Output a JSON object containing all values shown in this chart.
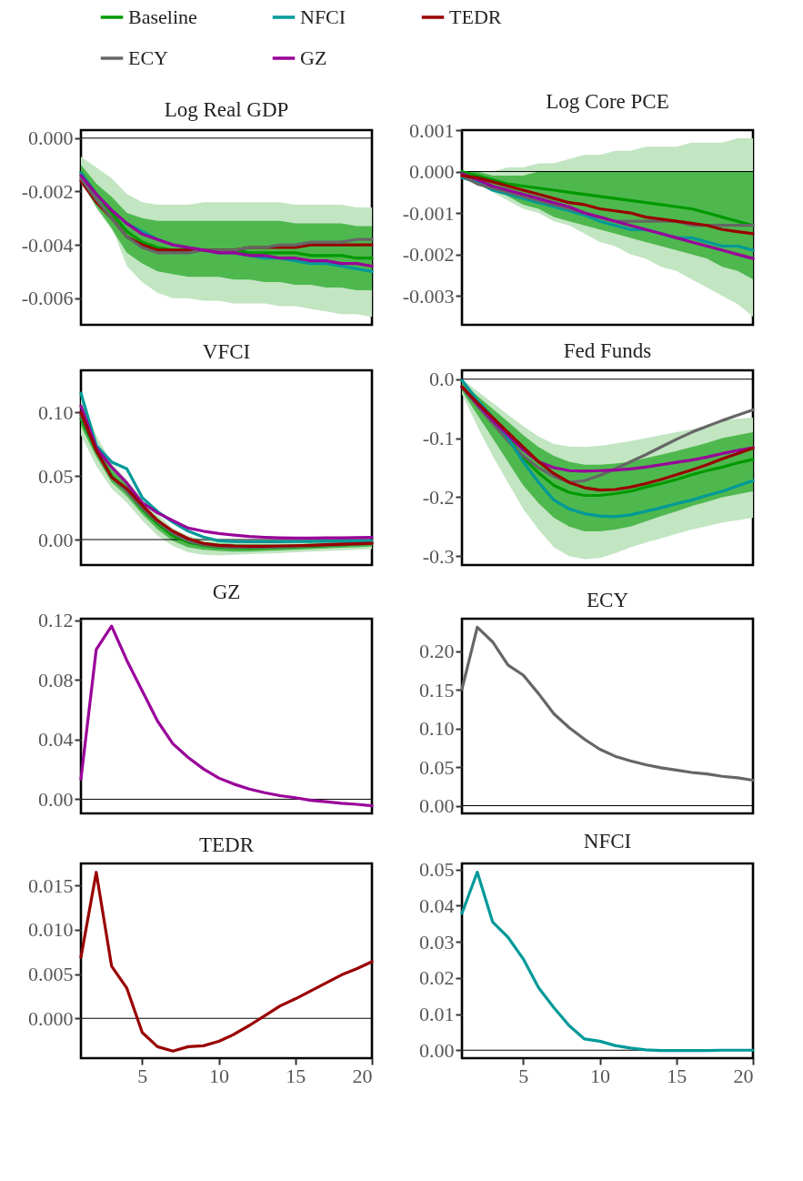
{
  "chart_data": [
    {
      "type": "line",
      "title": "Log Real GDP",
      "x": [
        1,
        2,
        3,
        4,
        5,
        6,
        7,
        8,
        9,
        10,
        11,
        12,
        13,
        14,
        15,
        16,
        17,
        18,
        19,
        20
      ],
      "xlim": [
        1,
        20
      ],
      "ylim": [
        -0.007,
        0.0003
      ],
      "yticks": [
        {
          "value": 0,
          "label": "0.000"
        },
        {
          "value": -0.002,
          "label": "-0.002"
        },
        {
          "value": -0.004,
          "label": "-0.004"
        },
        {
          "value": -0.006,
          "label": "-0.006"
        }
      ],
      "tick_labels": "y",
      "legend": "top",
      "grid": false,
      "ref_lines": [
        {
          "axis": "y",
          "value": 0,
          "color": "#000000"
        }
      ],
      "series": [
        {
          "color": "#c2e5c2",
          "values": [
            null,
            null,
            null,
            null,
            null,
            null,
            null,
            null,
            null,
            null,
            null,
            null,
            null,
            null,
            null,
            null,
            null,
            null,
            null,
            null
          ],
          "lower": [
            -0.0017,
            -0.0025,
            -0.0033,
            -0.0048,
            -0.0054,
            -0.0058,
            -0.006,
            -0.006,
            -0.0061,
            -0.0061,
            -0.0062,
            -0.0062,
            -0.0062,
            -0.0063,
            -0.0063,
            -0.0064,
            -0.0065,
            -0.0066,
            -0.0066,
            -0.0067
          ],
          "upper": [
            -0.0007,
            -0.0011,
            -0.0015,
            -0.0021,
            -0.0024,
            -0.0025,
            -0.0025,
            -0.0025,
            -0.0024,
            -0.0024,
            -0.0024,
            -0.0024,
            -0.0024,
            -0.0024,
            -0.0025,
            -0.0025,
            -0.0025,
            -0.0025,
            -0.0026,
            -0.0026
          ]
        },
        {
          "name": "Baseline",
          "color": "#009900",
          "values": [
            -0.0013,
            -0.0021,
            -0.0028,
            -0.0035,
            -0.0039,
            -0.0041,
            -0.0042,
            -0.0042,
            -0.0042,
            -0.0042,
            -0.0042,
            -0.0043,
            -0.0043,
            -0.0043,
            -0.0043,
            -0.0044,
            -0.0044,
            -0.0044,
            -0.0045,
            -0.0045
          ],
          "lower": [
            -0.0016,
            -0.0026,
            -0.0034,
            -0.0043,
            -0.0047,
            -0.005,
            -0.0051,
            -0.0052,
            -0.0052,
            -0.0052,
            -0.0053,
            -0.0053,
            -0.0054,
            -0.0054,
            -0.0055,
            -0.0055,
            -0.0056,
            -0.0056,
            -0.0057,
            -0.0057
          ],
          "upper": [
            -0.001,
            -0.0017,
            -0.0022,
            -0.0028,
            -0.003,
            -0.0031,
            -0.0031,
            -0.0031,
            -0.0031,
            -0.0031,
            -0.0031,
            -0.0031,
            -0.0031,
            -0.0031,
            -0.0032,
            -0.0032,
            -0.0032,
            -0.0032,
            -0.0033,
            -0.0033
          ]
        },
        {
          "name": "NFCI",
          "color": "#009999",
          "values": [
            -0.0013,
            -0.0021,
            -0.0027,
            -0.0032,
            -0.0035,
            -0.0038,
            -0.004,
            -0.0041,
            -0.0042,
            -0.0043,
            -0.0043,
            -0.0044,
            -0.0045,
            -0.0045,
            -0.0046,
            -0.0047,
            -0.0047,
            -0.0048,
            -0.0049,
            -0.005
          ]
        },
        {
          "name": "TEDR",
          "color": "#990000",
          "values": [
            -0.0016,
            -0.0024,
            -0.003,
            -0.0037,
            -0.004,
            -0.0042,
            -0.0042,
            -0.0042,
            -0.0042,
            -0.0042,
            -0.0042,
            -0.0041,
            -0.0041,
            -0.0041,
            -0.0041,
            -0.004,
            -0.004,
            -0.004,
            -0.004,
            -0.004
          ]
        },
        {
          "name": "ECY",
          "color": "#666666",
          "values": [
            -0.0015,
            -0.0023,
            -0.003,
            -0.0037,
            -0.0041,
            -0.0043,
            -0.0043,
            -0.0043,
            -0.0042,
            -0.0042,
            -0.0042,
            -0.0041,
            -0.0041,
            -0.004,
            -0.004,
            -0.0039,
            -0.0039,
            -0.0039,
            -0.0038,
            -0.0038
          ]
        },
        {
          "name": "GZ",
          "color": "#990099",
          "values": [
            -0.0014,
            -0.0021,
            -0.0027,
            -0.0032,
            -0.0036,
            -0.0038,
            -0.004,
            -0.0041,
            -0.0042,
            -0.0043,
            -0.0043,
            -0.0044,
            -0.0044,
            -0.0045,
            -0.0045,
            -0.0046,
            -0.0046,
            -0.0047,
            -0.0047,
            -0.0048
          ]
        }
      ]
    },
    {
      "type": "line",
      "title": "Log Core PCE",
      "x": [
        1,
        2,
        3,
        4,
        5,
        6,
        7,
        8,
        9,
        10,
        11,
        12,
        13,
        14,
        15,
        16,
        17,
        18,
        19,
        20
      ],
      "xlim": [
        1,
        20
      ],
      "ylim": [
        -0.0037,
        0.001
      ],
      "yticks": [
        {
          "value": 0.001,
          "label": "0.001"
        },
        {
          "value": 0,
          "label": "0.000"
        },
        {
          "value": -0.001,
          "label": "-0.001"
        },
        {
          "value": -0.002,
          "label": "-0.002"
        },
        {
          "value": -0.003,
          "label": "-0.003"
        }
      ],
      "tick_labels": "y",
      "grid": false,
      "ref_lines": [
        {
          "axis": "y",
          "value": 0,
          "color": "#000000"
        }
      ],
      "series": [
        {
          "color": "#c2e5c2",
          "values": [
            null,
            null,
            null,
            null,
            null,
            null,
            null,
            null,
            null,
            null,
            null,
            null,
            null,
            null,
            null,
            null,
            null,
            null,
            null,
            null
          ],
          "lower": [
            -0.0001,
            -0.0003,
            -0.0005,
            -0.0007,
            -0.0009,
            -0.001,
            -0.0012,
            -0.0013,
            -0.0015,
            -0.0017,
            -0.0018,
            -0.002,
            -0.0021,
            -0.0023,
            -0.0024,
            -0.0026,
            -0.0028,
            -0.003,
            -0.0032,
            -0.0035
          ],
          "upper": [
            0,
            0,
            0,
            0.0001,
            0.0001,
            0.0002,
            0.0002,
            0.0003,
            0.0004,
            0.0004,
            0.0005,
            0.0005,
            0.0006,
            0.0006,
            0.0006,
            0.0007,
            0.0007,
            0.0007,
            0.0008,
            0.0008
          ]
        },
        {
          "color": "#009900",
          "values": [
            0,
            -0.0001,
            -0.0002,
            -0.0003,
            -0.00035,
            -0.0004,
            -0.00045,
            -0.0005,
            -0.00055,
            -0.0006,
            -0.00065,
            -0.0007,
            -0.00075,
            -0.0008,
            -0.00085,
            -0.0009,
            -0.001,
            -0.0011,
            -0.0012,
            -0.0013
          ],
          "lower": [
            -0.0001,
            -0.0002,
            -0.0004,
            -0.0006,
            -0.0008,
            -0.0009,
            -0.0011,
            -0.0012,
            -0.0013,
            -0.0014,
            -0.0015,
            -0.0016,
            -0.0017,
            -0.0018,
            -0.0019,
            -0.002,
            -0.0021,
            -0.0023,
            -0.0024,
            -0.0026
          ],
          "upper": [
            0,
            0,
            -0.0001,
            -0.0001,
            -0.0001,
            0,
            0,
            0,
            0,
            0,
            0,
            0,
            0,
            0,
            0,
            0,
            0,
            0,
            0,
            0
          ]
        },
        {
          "color": "#009999",
          "values": [
            -0.00015,
            -0.00025,
            -0.00045,
            -0.00055,
            -0.00065,
            -0.00075,
            -0.00085,
            -0.00095,
            -0.00105,
            -0.0012,
            -0.0013,
            -0.0014,
            -0.0014,
            -0.0015,
            -0.0016,
            -0.0016,
            -0.0017,
            -0.0018,
            -0.0018,
            -0.0019
          ]
        },
        {
          "color": "#666666",
          "values": [
            -0.0001,
            -0.0003,
            -0.0004,
            -0.0005,
            -0.0006,
            -0.0007,
            -0.0008,
            -0.0009,
            -0.001,
            -0.0011,
            -0.0012,
            -0.0012,
            -0.0012,
            -0.0012,
            -0.0012,
            -0.0013,
            -0.0013,
            -0.0013,
            -0.0013,
            -0.0013
          ]
        },
        {
          "color": "#990099",
          "values": [
            -5e-05,
            -0.0002,
            -0.00035,
            -0.00045,
            -0.00055,
            -0.00065,
            -0.00075,
            -0.00085,
            -0.001,
            -0.0011,
            -0.0012,
            -0.0013,
            -0.0014,
            -0.0015,
            -0.0016,
            -0.0017,
            -0.0018,
            -0.0019,
            -0.002,
            -0.0021
          ]
        },
        {
          "color": "#990000",
          "values": [
            -0.0001,
            -0.00015,
            -0.00025,
            -0.00035,
            -0.00045,
            -0.00055,
            -0.00065,
            -0.00075,
            -0.0008,
            -0.0009,
            -0.00095,
            -0.001,
            -0.0011,
            -0.00115,
            -0.0012,
            -0.00125,
            -0.0013,
            -0.0014,
            -0.00145,
            -0.0015
          ]
        }
      ]
    },
    {
      "type": "line",
      "title": "VFCI",
      "x": [
        1,
        2,
        3,
        4,
        5,
        6,
        7,
        8,
        9,
        10,
        11,
        12,
        13,
        14,
        15,
        16,
        17,
        18,
        19,
        20
      ],
      "xlim": [
        1,
        20
      ],
      "ylim": [
        -0.02,
        0.133
      ],
      "yticks": [
        {
          "value": 0.1,
          "label": "0.10"
        },
        {
          "value": 0.05,
          "label": "0.05"
        },
        {
          "value": 0,
          "label": "0.00"
        }
      ],
      "tick_labels": "y",
      "grid": false,
      "ref_lines": [
        {
          "axis": "y",
          "value": 0,
          "color": "#000000"
        }
      ],
      "series": [
        {
          "color": "#c2e5c2",
          "values": [
            null,
            null,
            null,
            null,
            null,
            null,
            null,
            null,
            null,
            null,
            null,
            null,
            null,
            null,
            null,
            null,
            null,
            null,
            null,
            null
          ],
          "lower": [
            0.082,
            0.058,
            0.04,
            0.029,
            0.015,
            0.003,
            -0.005,
            -0.01,
            -0.012,
            -0.0125,
            -0.012,
            -0.0115,
            -0.011,
            -0.0105,
            -0.01,
            -0.0095,
            -0.009,
            -0.0085,
            -0.008,
            -0.0075
          ],
          "upper": [
            0.113,
            0.082,
            0.06,
            0.047,
            0.032,
            0.02,
            0.009,
            0.003,
            0.0,
            -0.001,
            -0.002,
            -0.002,
            -0.002,
            -0.002,
            -0.002,
            -0.0017,
            -0.0015,
            -0.0012,
            -0.001,
            -0.0008
          ]
        },
        {
          "color": "#009900",
          "values": [
            0.095,
            0.07,
            0.05,
            0.0385,
            0.024,
            0.0125,
            0.003,
            -0.002,
            -0.0045,
            -0.006,
            -0.0064,
            -0.0065,
            -0.0064,
            -0.006,
            -0.0057,
            -0.0052,
            -0.0047,
            -0.0042,
            -0.0037,
            -0.003
          ],
          "lower": [
            0.089,
            0.065,
            0.045,
            0.034,
            0.02,
            0.008,
            -0.001,
            -0.006,
            -0.008,
            -0.009,
            -0.0095,
            -0.0095,
            -0.009,
            -0.0085,
            -0.008,
            -0.0075,
            -0.007,
            -0.0065,
            -0.006,
            -0.0055
          ],
          "upper": [
            0.101,
            0.075,
            0.055,
            0.043,
            0.028,
            0.017,
            0.006,
            0.001,
            -0.002,
            -0.003,
            -0.0035,
            -0.0037,
            -0.0037,
            -0.004,
            -0.0037,
            -0.0032,
            -0.0027,
            -0.0022,
            -0.0017,
            -0.001
          ]
        },
        {
          "color": "#009999",
          "values": [
            0.115,
            0.074,
            0.061,
            0.0556,
            0.033,
            0.022,
            0.0137,
            0.0066,
            0.002,
            -0.001,
            -0.0015,
            -0.0017,
            -0.0017,
            -0.0017,
            -0.0016,
            -0.0015,
            -0.0013,
            -0.0012,
            -0.001,
            -0.001
          ]
        },
        {
          "color": "#666666",
          "values": [
            0.098,
            0.07,
            0.049,
            0.038,
            0.025,
            0.014,
            0.005,
            -0.001,
            -0.004,
            -0.0055,
            -0.006,
            -0.006,
            -0.006,
            -0.0058,
            -0.0055,
            -0.005,
            -0.0045,
            -0.004,
            -0.0035,
            -0.003
          ]
        },
        {
          "color": "#990099",
          "values": [
            0.105,
            0.072,
            0.057,
            0.0444,
            0.029,
            0.021,
            0.0149,
            0.009,
            0.0066,
            0.0047,
            0.0035,
            0.0024,
            0.0018,
            0.0014,
            0.0012,
            0.0012,
            0.0013,
            0.0014,
            0.0015,
            0.0017
          ]
        },
        {
          "color": "#990000",
          "values": [
            0.1,
            0.07,
            0.049,
            0.04,
            0.027,
            0.015,
            0.0066,
            0.0007,
            -0.003,
            -0.0045,
            -0.005,
            -0.0052,
            -0.0052,
            -0.005,
            -0.0048,
            -0.0045,
            -0.004,
            -0.0037,
            -0.0033,
            -0.003
          ]
        }
      ]
    },
    {
      "type": "line",
      "title": "Fed Funds",
      "x": [
        1,
        2,
        3,
        4,
        5,
        6,
        7,
        8,
        9,
        10,
        11,
        12,
        13,
        14,
        15,
        16,
        17,
        18,
        19,
        20
      ],
      "xlim": [
        1,
        20
      ],
      "ylim": [
        -0.315,
        0.015
      ],
      "yticks": [
        {
          "value": 0,
          "label": "0.0"
        },
        -0.1,
        -0.2,
        -0.3
      ],
      "tick_labels": "y",
      "grid": false,
      "ref_lines": [
        {
          "axis": "y",
          "value": 0,
          "color": "#000000"
        }
      ],
      "series": [
        {
          "color": "#c2e5c2",
          "values": [
            null,
            null,
            null,
            null,
            null,
            null,
            null,
            null,
            null,
            null,
            null,
            null,
            null,
            null,
            null,
            null,
            null,
            null,
            null,
            null
          ],
          "lower": [
            -0.025,
            -0.08,
            -0.13,
            -0.175,
            -0.22,
            -0.255,
            -0.285,
            -0.3,
            -0.305,
            -0.303,
            -0.295,
            -0.285,
            -0.277,
            -0.27,
            -0.262,
            -0.255,
            -0.249,
            -0.243,
            -0.239,
            -0.235
          ],
          "upper": [
            0,
            -0.02,
            -0.04,
            -0.06,
            -0.08,
            -0.097,
            -0.11,
            -0.114,
            -0.115,
            -0.113,
            -0.109,
            -0.105,
            -0.1,
            -0.095,
            -0.09,
            -0.085,
            -0.078,
            -0.07,
            -0.067,
            -0.065
          ]
        },
        {
          "color": "#009900",
          "values": [
            -0.013,
            -0.04,
            -0.072,
            -0.1,
            -0.133,
            -0.159,
            -0.18,
            -0.192,
            -0.197,
            -0.197,
            -0.194,
            -0.19,
            -0.183,
            -0.177,
            -0.17,
            -0.162,
            -0.155,
            -0.149,
            -0.142,
            -0.136
          ],
          "lower": [
            -0.02,
            -0.06,
            -0.1,
            -0.14,
            -0.18,
            -0.21,
            -0.235,
            -0.25,
            -0.258,
            -0.258,
            -0.255,
            -0.25,
            -0.241,
            -0.232,
            -0.224,
            -0.215,
            -0.208,
            -0.2,
            -0.195,
            -0.19
          ],
          "upper": [
            -0.005,
            -0.028,
            -0.05,
            -0.072,
            -0.095,
            -0.115,
            -0.13,
            -0.14,
            -0.145,
            -0.145,
            -0.143,
            -0.14,
            -0.134,
            -0.128,
            -0.122,
            -0.115,
            -0.108,
            -0.1,
            -0.095,
            -0.09
          ]
        },
        {
          "color": "#666666",
          "values": [
            -0.013,
            -0.045,
            -0.075,
            -0.105,
            -0.13,
            -0.15,
            -0.165,
            -0.175,
            -0.172,
            -0.163,
            -0.152,
            -0.14,
            -0.128,
            -0.115,
            -0.102,
            -0.09,
            -0.08,
            -0.07,
            -0.061,
            -0.052
          ]
        },
        {
          "color": "#009999",
          "values": [
            -0.002,
            -0.035,
            -0.065,
            -0.1,
            -0.14,
            -0.175,
            -0.205,
            -0.22,
            -0.228,
            -0.232,
            -0.233,
            -0.23,
            -0.224,
            -0.218,
            -0.211,
            -0.205,
            -0.197,
            -0.19,
            -0.181,
            -0.172
          ]
        },
        {
          "color": "#990099",
          "values": [
            -0.013,
            -0.042,
            -0.07,
            -0.095,
            -0.12,
            -0.14,
            -0.15,
            -0.155,
            -0.156,
            -0.155,
            -0.154,
            -0.152,
            -0.149,
            -0.145,
            -0.141,
            -0.137,
            -0.132,
            -0.126,
            -0.121,
            -0.116
          ]
        },
        {
          "color": "#990000",
          "values": [
            -0.013,
            -0.04,
            -0.065,
            -0.09,
            -0.115,
            -0.14,
            -0.16,
            -0.175,
            -0.184,
            -0.188,
            -0.187,
            -0.183,
            -0.177,
            -0.17,
            -0.162,
            -0.154,
            -0.145,
            -0.135,
            -0.126,
            -0.117
          ]
        }
      ]
    },
    {
      "type": "line",
      "title": "GZ",
      "x": [
        1,
        2,
        3,
        4,
        5,
        6,
        7,
        8,
        9,
        10,
        11,
        12,
        13,
        14,
        15,
        16,
        17,
        18,
        19,
        20
      ],
      "xlim": [
        1,
        20
      ],
      "ylim": [
        -0.0095,
        0.121
      ],
      "yticks": [
        {
          "value": 0,
          "label": "0.00"
        },
        0.04,
        0.08,
        0.12
      ],
      "tick_labels": "y",
      "grid": false,
      "ref_lines": [
        {
          "axis": "y",
          "value": 0,
          "color": "#000000"
        }
      ],
      "series": [
        {
          "color": "#990099",
          "values": [
            0.0135,
            0.1004,
            0.116,
            0.093,
            0.0727,
            0.0524,
            0.0372,
            0.028,
            0.0203,
            0.0142,
            0.0101,
            0.0068,
            0.0044,
            0.0024,
            0.001,
            -0.0007,
            -0.0017,
            -0.0027,
            -0.0034,
            -0.0044
          ]
        }
      ]
    },
    {
      "type": "line",
      "title": "ECY",
      "x": [
        1,
        2,
        3,
        4,
        5,
        6,
        7,
        8,
        9,
        10,
        11,
        12,
        13,
        14,
        15,
        16,
        17,
        18,
        19,
        20
      ],
      "xlim": [
        1,
        20
      ],
      "ylim": [
        -0.01,
        0.242
      ],
      "yticks": [
        {
          "value": 0,
          "label": "0.00"
        },
        0.05,
        {
          "value": 0.1,
          "label": "0.10"
        },
        0.15,
        {
          "value": 0.2,
          "label": "0.20"
        }
      ],
      "tick_labels": "y",
      "grid": false,
      "ref_lines": [
        {
          "axis": "y",
          "value": 0,
          "color": "#000000"
        }
      ],
      "series": [
        {
          "color": "#666666",
          "values": [
            0.151,
            0.231,
            0.212,
            0.182,
            0.169,
            0.145,
            0.119,
            0.101,
            0.086,
            0.073,
            0.064,
            0.058,
            0.053,
            0.049,
            0.046,
            0.043,
            0.041,
            0.038,
            0.036,
            0.033
          ]
        }
      ]
    },
    {
      "type": "line",
      "title": "TEDR",
      "x": [
        1,
        2,
        3,
        4,
        5,
        6,
        7,
        8,
        9,
        10,
        11,
        12,
        13,
        14,
        15,
        16,
        17,
        18,
        19,
        20
      ],
      "xlim": [
        1,
        20
      ],
      "ylim": [
        -0.0045,
        0.0175
      ],
      "xticks": [
        5,
        10,
        15,
        20
      ],
      "yticks": [
        {
          "value": 0,
          "label": "0.000"
        },
        0.005,
        {
          "value": 0.01,
          "label": "0.010"
        },
        0.015
      ],
      "grid": false,
      "ref_lines": [
        {
          "axis": "y",
          "value": 0,
          "color": "#000000"
        }
      ],
      "series": [
        {
          "color": "#990000",
          "values": [
            0.0069,
            0.0165,
            0.0059,
            0.0034,
            -0.0016,
            -0.0032,
            -0.0037,
            -0.0032,
            -0.0031,
            -0.0026,
            -0.0018,
            -0.0008,
            0.0003,
            0.0014,
            0.0022,
            0.0031,
            0.004,
            0.0049,
            0.0056,
            0.0064
          ]
        }
      ]
    },
    {
      "type": "line",
      "title": "NFCI",
      "x": [
        1,
        2,
        3,
        4,
        5,
        6,
        7,
        8,
        9,
        10,
        11,
        12,
        13,
        14,
        15,
        16,
        17,
        18,
        19,
        20
      ],
      "xlim": [
        1,
        20
      ],
      "ylim": [
        -0.0022,
        0.0517
      ],
      "xticks": [
        5,
        10,
        15,
        20
      ],
      "yticks": [
        {
          "value": 0,
          "label": "0.00"
        },
        0.01,
        0.02,
        0.03,
        0.04,
        0.05
      ],
      "grid": false,
      "ref_lines": [
        {
          "axis": "y",
          "value": 0,
          "color": "#000000"
        }
      ],
      "series": [
        {
          "color": "#009999",
          "values": [
            0.0379,
            0.0493,
            0.0355,
            0.0313,
            0.0253,
            0.0173,
            0.0118,
            0.0068,
            0.0031,
            0.0025,
            0.0013,
            0.0006,
            0.0001,
            -0.0001,
            -0.0001,
            -0.0001,
            -0.0001,
            0,
            0,
            0
          ]
        }
      ]
    }
  ]
}
